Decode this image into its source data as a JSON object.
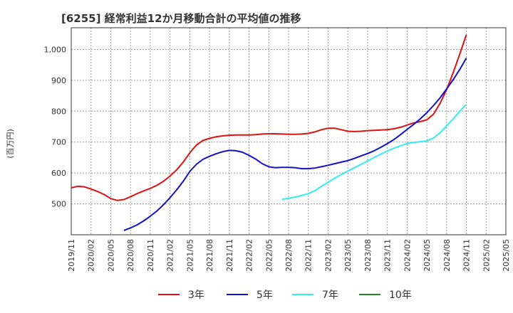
{
  "chart_data": {
    "type": "line",
    "title": "[6255]  経常利益12か月移動合計の平均値の推移",
    "ylabel": "(百万円)",
    "xlabel": "",
    "ylim": [
      400,
      1070
    ],
    "yticks": [
      500,
      600,
      700,
      800,
      900,
      1000
    ],
    "ytick_labels": [
      "500",
      "600",
      "700",
      "800",
      "900",
      "1,000"
    ],
    "x_ticks": [
      "2019/11",
      "2020/02",
      "2020/05",
      "2020/08",
      "2020/11",
      "2021/02",
      "2021/05",
      "2021/08",
      "2021/11",
      "2022/02",
      "2022/05",
      "2022/08",
      "2022/11",
      "2023/02",
      "2023/05",
      "2023/08",
      "2023/11",
      "2024/02",
      "2024/05",
      "2024/08",
      "2024/11",
      "2025/02",
      "2025/05"
    ],
    "grid": true,
    "legend_position": "bottom",
    "series": [
      {
        "name": "3年",
        "color": "#dd1111",
        "points": [
          [
            "2019/11",
            552
          ],
          [
            "2019/12",
            557
          ],
          [
            "2020/01",
            555
          ],
          [
            "2020/02",
            548
          ],
          [
            "2020/03",
            540
          ],
          [
            "2020/04",
            530
          ],
          [
            "2020/05",
            517
          ],
          [
            "2020/06",
            511
          ],
          [
            "2020/07",
            514
          ],
          [
            "2020/08",
            523
          ],
          [
            "2020/09",
            533
          ],
          [
            "2020/10",
            542
          ],
          [
            "2020/11",
            550
          ],
          [
            "2020/12",
            560
          ],
          [
            "2021/01",
            573
          ],
          [
            "2021/02",
            590
          ],
          [
            "2021/03",
            610
          ],
          [
            "2021/04",
            635
          ],
          [
            "2021/05",
            665
          ],
          [
            "2021/06",
            690
          ],
          [
            "2021/07",
            705
          ],
          [
            "2021/08",
            712
          ],
          [
            "2021/09",
            717
          ],
          [
            "2021/10",
            720
          ],
          [
            "2021/11",
            722
          ],
          [
            "2021/12",
            723
          ],
          [
            "2022/01",
            723
          ],
          [
            "2022/02",
            723
          ],
          [
            "2022/03",
            724
          ],
          [
            "2022/04",
            726
          ],
          [
            "2022/05",
            727
          ],
          [
            "2022/06",
            727
          ],
          [
            "2022/07",
            726
          ],
          [
            "2022/08",
            725
          ],
          [
            "2022/09",
            725
          ],
          [
            "2022/10",
            726
          ],
          [
            "2022/11",
            728
          ],
          [
            "2022/12",
            733
          ],
          [
            "2023/01",
            740
          ],
          [
            "2023/02",
            745
          ],
          [
            "2023/03",
            745
          ],
          [
            "2023/04",
            740
          ],
          [
            "2023/05",
            735
          ],
          [
            "2023/06",
            734
          ],
          [
            "2023/07",
            735
          ],
          [
            "2023/08",
            737
          ],
          [
            "2023/09",
            738
          ],
          [
            "2023/10",
            739
          ],
          [
            "2023/11",
            740
          ],
          [
            "2023/12",
            743
          ],
          [
            "2024/01",
            748
          ],
          [
            "2024/02",
            755
          ],
          [
            "2024/03",
            762
          ],
          [
            "2024/04",
            766
          ],
          [
            "2024/05",
            772
          ],
          [
            "2024/06",
            790
          ],
          [
            "2024/07",
            825
          ],
          [
            "2024/08",
            870
          ],
          [
            "2024/09",
            925
          ],
          [
            "2024/10",
            985
          ],
          [
            "2024/11",
            1047
          ]
        ]
      },
      {
        "name": "5年",
        "color": "#1111cc",
        "points": [
          [
            "2020/07",
            414
          ],
          [
            "2020/08",
            422
          ],
          [
            "2020/09",
            432
          ],
          [
            "2020/10",
            445
          ],
          [
            "2020/11",
            460
          ],
          [
            "2020/12",
            477
          ],
          [
            "2021/01",
            497
          ],
          [
            "2021/02",
            520
          ],
          [
            "2021/03",
            545
          ],
          [
            "2021/04",
            573
          ],
          [
            "2021/05",
            605
          ],
          [
            "2021/06",
            628
          ],
          [
            "2021/07",
            644
          ],
          [
            "2021/08",
            654
          ],
          [
            "2021/09",
            662
          ],
          [
            "2021/10",
            669
          ],
          [
            "2021/11",
            673
          ],
          [
            "2021/12",
            672
          ],
          [
            "2022/01",
            667
          ],
          [
            "2022/02",
            657
          ],
          [
            "2022/03",
            645
          ],
          [
            "2022/04",
            630
          ],
          [
            "2022/05",
            620
          ],
          [
            "2022/06",
            617
          ],
          [
            "2022/07",
            618
          ],
          [
            "2022/08",
            618
          ],
          [
            "2022/09",
            617
          ],
          [
            "2022/10",
            614
          ],
          [
            "2022/11",
            614
          ],
          [
            "2022/12",
            616
          ],
          [
            "2023/01",
            620
          ],
          [
            "2023/02",
            625
          ],
          [
            "2023/03",
            630
          ],
          [
            "2023/04",
            635
          ],
          [
            "2023/05",
            640
          ],
          [
            "2023/06",
            647
          ],
          [
            "2023/07",
            655
          ],
          [
            "2023/08",
            663
          ],
          [
            "2023/09",
            672
          ],
          [
            "2023/10",
            683
          ],
          [
            "2023/11",
            695
          ],
          [
            "2023/12",
            708
          ],
          [
            "2024/01",
            724
          ],
          [
            "2024/02",
            741
          ],
          [
            "2024/03",
            757
          ],
          [
            "2024/04",
            775
          ],
          [
            "2024/05",
            795
          ],
          [
            "2024/06",
            818
          ],
          [
            "2024/07",
            843
          ],
          [
            "2024/08",
            872
          ],
          [
            "2024/09",
            902
          ],
          [
            "2024/10",
            935
          ],
          [
            "2024/11",
            972
          ]
        ]
      },
      {
        "name": "7年",
        "color": "#33eeee",
        "points": [
          [
            "2022/07",
            515
          ],
          [
            "2022/08",
            518
          ],
          [
            "2022/09",
            522
          ],
          [
            "2022/10",
            527
          ],
          [
            "2022/11",
            533
          ],
          [
            "2022/12",
            543
          ],
          [
            "2023/01",
            557
          ],
          [
            "2023/02",
            570
          ],
          [
            "2023/03",
            583
          ],
          [
            "2023/04",
            595
          ],
          [
            "2023/05",
            606
          ],
          [
            "2023/06",
            617
          ],
          [
            "2023/07",
            628
          ],
          [
            "2023/08",
            639
          ],
          [
            "2023/09",
            650
          ],
          [
            "2023/10",
            661
          ],
          [
            "2023/11",
            671
          ],
          [
            "2023/12",
            680
          ],
          [
            "2024/01",
            688
          ],
          [
            "2024/02",
            695
          ],
          [
            "2024/03",
            699
          ],
          [
            "2024/04",
            701
          ],
          [
            "2024/05",
            704
          ],
          [
            "2024/06",
            713
          ],
          [
            "2024/07",
            730
          ],
          [
            "2024/08",
            752
          ],
          [
            "2024/09",
            775
          ],
          [
            "2024/10",
            800
          ],
          [
            "2024/11",
            822
          ]
        ]
      },
      {
        "name": "10年",
        "color": "#228822",
        "points": []
      }
    ]
  }
}
